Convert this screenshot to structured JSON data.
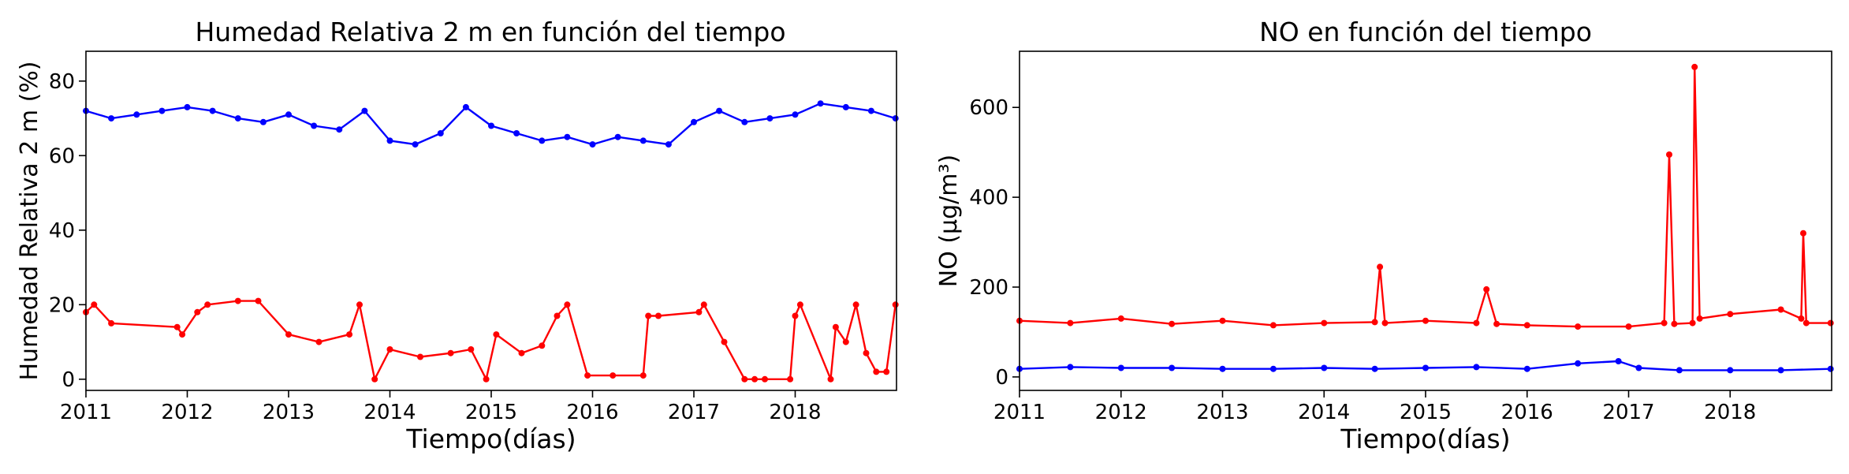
{
  "chart_data": [
    {
      "type": "line",
      "title": "Humedad Relativa 2 m en función del tiempo",
      "xlabel": "Tiempo(días)",
      "ylabel": "Humedad Relativa 2 m (%)",
      "xlim": [
        2011.0,
        2019.0
      ],
      "ylim": [
        -3,
        88
      ],
      "x_ticks": [
        "2011",
        "2012",
        "2013",
        "2014",
        "2015",
        "2016",
        "2017",
        "2018"
      ],
      "y_ticks": [
        0,
        20,
        40,
        60,
        80
      ],
      "grid": false,
      "series": [
        {
          "color": "#0000ff",
          "marker": "circle",
          "x": [
            2011.0,
            2011.25,
            2011.5,
            2011.75,
            2012.0,
            2012.25,
            2012.5,
            2012.75,
            2013.0,
            2013.25,
            2013.5,
            2013.75,
            2014.0,
            2014.25,
            2014.5,
            2014.75,
            2015.0,
            2015.25,
            2015.5,
            2015.75,
            2016.0,
            2016.25,
            2016.5,
            2016.75,
            2017.0,
            2017.25,
            2017.5,
            2017.75,
            2018.0,
            2018.25,
            2018.5,
            2018.75,
            2018.99
          ],
          "values": [
            72,
            70,
            71,
            72,
            73,
            72,
            70,
            69,
            71,
            68,
            67,
            72,
            64,
            63,
            66,
            73,
            68,
            66,
            64,
            65,
            63,
            65,
            64,
            63,
            69,
            72,
            69,
            70,
            71,
            74,
            73,
            72,
            70
          ]
        },
        {
          "color": "#ff0000",
          "marker": "circle",
          "x": [
            2011.0,
            2011.08,
            2011.25,
            2011.9,
            2011.95,
            2012.1,
            2012.2,
            2012.5,
            2012.7,
            2013.0,
            2013.3,
            2013.6,
            2013.7,
            2013.85,
            2014.0,
            2014.3,
            2014.6,
            2014.8,
            2014.95,
            2015.05,
            2015.3,
            2015.5,
            2015.65,
            2015.75,
            2015.95,
            2016.2,
            2016.5,
            2016.55,
            2016.65,
            2017.05,
            2017.1,
            2017.3,
            2017.5,
            2017.6,
            2017.7,
            2017.95,
            2018.0,
            2018.05,
            2018.35,
            2018.4,
            2018.5,
            2018.6,
            2018.7,
            2018.8,
            2018.9,
            2018.99
          ],
          "values": [
            18,
            20,
            15,
            14,
            12,
            18,
            20,
            21,
            21,
            12,
            10,
            12,
            20,
            0,
            8,
            6,
            7,
            8,
            0,
            12,
            7,
            9,
            17,
            20,
            1,
            1,
            1,
            17,
            17,
            18,
            20,
            10,
            0,
            0,
            0,
            0,
            17,
            20,
            0,
            14,
            10,
            20,
            7,
            2,
            2,
            20
          ]
        }
      ]
    },
    {
      "type": "line",
      "title": "NO en función del tiempo",
      "xlabel": "Tiempo(días)",
      "ylabel": "NO (μg/m³)",
      "xlim": [
        2011.0,
        2019.0
      ],
      "ylim": [
        -30,
        725
      ],
      "x_ticks": [
        "2011",
        "2012",
        "2013",
        "2014",
        "2015",
        "2016",
        "2017",
        "2018"
      ],
      "y_ticks": [
        0,
        200,
        400,
        600
      ],
      "grid": false,
      "series": [
        {
          "color": "#ff0000",
          "marker": "circle",
          "x": [
            2011.0,
            2011.5,
            2012.0,
            2012.5,
            2013.0,
            2013.5,
            2014.0,
            2014.5,
            2014.55,
            2014.6,
            2015.0,
            2015.5,
            2015.6,
            2015.7,
            2016.0,
            2016.5,
            2017.0,
            2017.35,
            2017.4,
            2017.45,
            2017.63,
            2017.65,
            2017.7,
            2018.0,
            2018.5,
            2018.7,
            2018.72,
            2018.75,
            2018.99
          ],
          "values": [
            125,
            120,
            130,
            118,
            125,
            115,
            120,
            122,
            245,
            120,
            125,
            120,
            195,
            118,
            115,
            112,
            112,
            120,
            495,
            118,
            120,
            690,
            130,
            140,
            150,
            130,
            320,
            120,
            120
          ]
        },
        {
          "color": "#0000ff",
          "marker": "circle",
          "x": [
            2011.0,
            2011.5,
            2012.0,
            2012.5,
            2013.0,
            2013.5,
            2014.0,
            2014.5,
            2015.0,
            2015.5,
            2016.0,
            2016.5,
            2016.9,
            2017.1,
            2017.5,
            2018.0,
            2018.5,
            2018.99
          ],
          "values": [
            18,
            22,
            20,
            20,
            18,
            18,
            20,
            18,
            20,
            22,
            18,
            30,
            35,
            20,
            15,
            15,
            15,
            18
          ]
        }
      ]
    }
  ]
}
